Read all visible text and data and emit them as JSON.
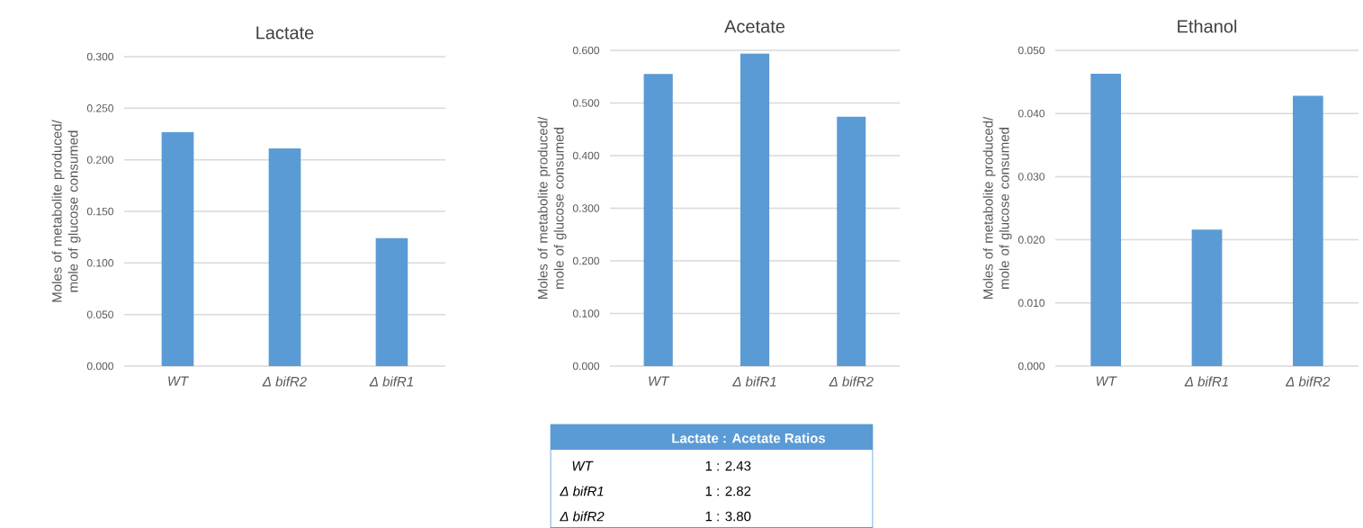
{
  "chart_data": [
    {
      "type": "bar",
      "title": "Lactate",
      "ylabel": "Moles of metabolite produced/ mole of glucose consumed",
      "categories": [
        "WT",
        "Δ bifR2",
        "Δ bifR1"
      ],
      "values": [
        0.227,
        0.211,
        0.124
      ],
      "color": "#5b9bd5",
      "ylim": [
        0,
        0.3
      ],
      "yticks": [
        {
          "value": 0,
          "label": "0.000"
        },
        {
          "value": 0.05,
          "label": "0.050"
        },
        {
          "value": 0.1,
          "label": "0.100"
        },
        {
          "value": 0.15,
          "label": "0.150"
        },
        {
          "value": 0.2,
          "label": "0.200"
        },
        {
          "value": 0.25,
          "label": "0.250"
        },
        {
          "value": 0.3,
          "label": "0.300"
        }
      ],
      "grid": "y"
    },
    {
      "type": "bar",
      "title": "Acetate",
      "ylabel": "Moles of metabolite produced/ mole of glucose consumed",
      "categories": [
        "WT",
        "Δ bifR1",
        "Δ bifR2"
      ],
      "values": [
        0.555,
        0.594,
        0.474
      ],
      "color": "#5b9bd5",
      "ylim": [
        0,
        0.6
      ],
      "yticks": [
        {
          "value": 0,
          "label": "0.000"
        },
        {
          "value": 0.1,
          "label": "0.100"
        },
        {
          "value": 0.2,
          "label": "0.200"
        },
        {
          "value": 0.3,
          "label": "0.300"
        },
        {
          "value": 0.4,
          "label": "0.400"
        },
        {
          "value": 0.5,
          "label": "0.500"
        },
        {
          "value": 0.6,
          "label": "0.600"
        }
      ],
      "grid": "y"
    },
    {
      "type": "bar",
      "title": "Ethanol",
      "ylabel": "Moles of metabolite produced/ mole of glucose consumed",
      "categories": [
        "WT",
        "Δ bifR1",
        "Δ bifR2"
      ],
      "values": [
        0.0463,
        0.0216,
        0.0428
      ],
      "color": "#5b9bd5",
      "ylim": [
        0,
        0.05
      ],
      "yticks": [
        {
          "value": 0,
          "label": "0.000"
        },
        {
          "value": 0.01,
          "label": "0.010"
        },
        {
          "value": 0.02,
          "label": "0.020"
        },
        {
          "value": 0.03,
          "label": "0.030"
        },
        {
          "value": 0.04,
          "label": "0.040"
        },
        {
          "value": 0.05,
          "label": "0.050"
        }
      ],
      "grid": "y"
    },
    {
      "type": "other",
      "title": "Lactate : Acetate Ratios",
      "categories": [
        "WT",
        "Δ bifR1",
        "Δ bifR2"
      ],
      "annotations": [
        "1 : 2.43",
        "1 : 2.82",
        "1 : 3.80"
      ],
      "color": "#5b9bd5"
    }
  ]
}
